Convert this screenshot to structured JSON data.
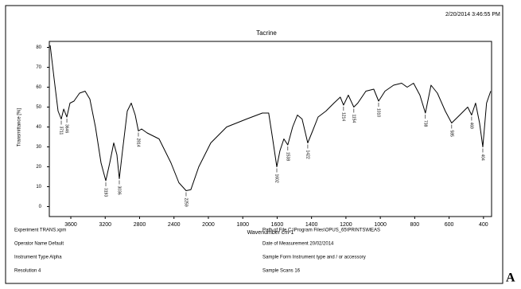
{
  "header": {
    "timestamp": "2/20/2014  3:46:55 PM"
  },
  "chart_data": {
    "type": "line",
    "title": "Tacrine",
    "x_label": "Wavenumber cm-1",
    "y_label": "Transmittance [%]",
    "color": "#000000",
    "x": [
      3840,
      3794,
      3748,
      3711,
      3683,
      3646,
      3609,
      3563,
      3498,
      3434,
      3378,
      3313,
      3249,
      3193,
      3147,
      3101,
      3064,
      3036,
      2999,
      2943,
      2897,
      2851,
      2814,
      2777,
      2712,
      2573,
      2435,
      2343,
      2259,
      2204,
      2112,
      1986,
      1894,
      1778,
      1686,
      1649,
      1626,
      1602,
      1584,
      1561,
      1538,
      1510,
      1482,
      1455,
      1422,
      1394,
      1362,
      1316,
      1270,
      1233,
      1214,
      1186,
      1154,
      1131,
      1084,
      1038,
      1010,
      973,
      923,
      876,
      844,
      807,
      770,
      738,
      705,
      668,
      622,
      585,
      538,
      492,
      469,
      446,
      423,
      404,
      382,
      358
    ],
    "values": [
      81,
      64,
      48,
      44,
      49,
      45,
      52,
      53,
      57,
      58,
      54,
      40,
      22,
      13,
      22,
      32,
      26,
      14,
      28,
      48,
      52,
      46,
      38,
      39,
      37,
      34,
      22,
      12,
      8,
      8.5,
      20,
      32,
      40,
      44,
      47,
      47,
      34,
      20,
      28,
      34,
      31,
      40,
      46,
      44,
      32,
      38,
      45,
      48,
      52,
      55,
      51,
      56,
      50,
      52,
      58,
      59,
      53,
      58,
      61,
      62,
      60,
      62,
      56,
      47,
      61,
      57,
      48,
      42,
      46,
      50,
      46,
      52,
      42,
      30,
      52,
      58
    ],
    "xlim": [
      3850,
      353
    ],
    "ylim": [
      -5,
      83
    ],
    "xticks": [
      3600,
      3200,
      2800,
      2400,
      2000,
      1800,
      1600,
      1400,
      1200,
      1000,
      800,
      600,
      400
    ],
    "yticks": [
      0,
      10,
      20,
      30,
      40,
      50,
      60,
      70,
      80
    ],
    "peaks": [
      {
        "x": 3711,
        "y": 44
      },
      {
        "x": 3646,
        "y": 45
      },
      {
        "x": 3193,
        "y": 13
      },
      {
        "x": 3036,
        "y": 14
      },
      {
        "x": 2814,
        "y": 38
      },
      {
        "x": 2259,
        "y": 8
      },
      {
        "x": 1602,
        "y": 20
      },
      {
        "x": 1538,
        "y": 31
      },
      {
        "x": 1422,
        "y": 32
      },
      {
        "x": 1214,
        "y": 51
      },
      {
        "x": 1154,
        "y": 50
      },
      {
        "x": 1010,
        "y": 53
      },
      {
        "x": 738,
        "y": 47
      },
      {
        "x": 585,
        "y": 42
      },
      {
        "x": 469,
        "y": 46
      },
      {
        "x": 404,
        "y": 30
      }
    ]
  },
  "footer": {
    "left": [
      "Experiment TRANS.xpm",
      "Operator Name Default",
      "Instrument Type Alpha",
      "Resolution 4"
    ],
    "right": [
      "Path of File C:\\Program Files\\OPUS_65\\PRINTS\\MEAS",
      "Date of Measurement 20/02/2014",
      "Sample Form Instrument type and / or accessory",
      "Sample Scans 16"
    ]
  },
  "panel_label": "A"
}
